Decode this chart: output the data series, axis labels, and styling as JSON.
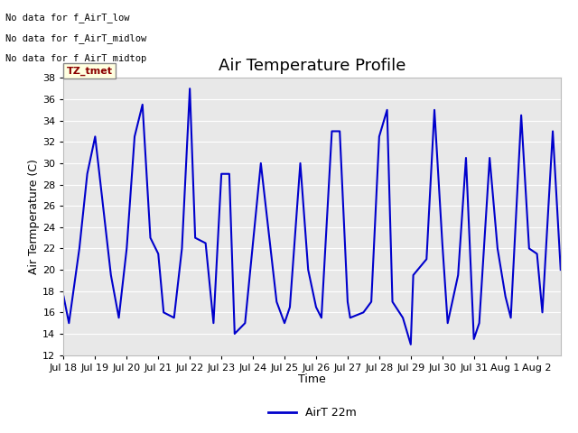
{
  "title": "Air Temperature Profile",
  "xlabel": "Time",
  "ylabel": "Air Termperature (C)",
  "ylim": [
    12,
    38
  ],
  "yticks": [
    12,
    14,
    16,
    18,
    20,
    22,
    24,
    26,
    28,
    30,
    32,
    34,
    36,
    38
  ],
  "line_color": "#0000cc",
  "line_width": 1.5,
  "background_color": "#e8e8e8",
  "no_data_texts": [
    "No data for f_AirT_low",
    "No data for f_AirT_midlow",
    "No data for f_AirT_midtop"
  ],
  "tz_label": "TZ_tmet",
  "legend_label": "AirT 22m",
  "x_tick_labels": [
    "Jul 18",
    "Jul 19",
    "Jul 20",
    "Jul 21",
    "Jul 22",
    "Jul 23",
    "Jul 24",
    "Jul 25",
    "Jul 26",
    "Jul 27",
    "Jul 28",
    "Jul 29",
    "Jul 30",
    "Jul 31",
    "Aug 1",
    "Aug 2"
  ],
  "time_data": [
    0.0,
    0.17,
    0.5,
    0.75,
    1.0,
    1.25,
    1.5,
    1.75,
    2.0,
    2.25,
    2.5,
    2.75,
    3.0,
    3.17,
    3.5,
    3.75,
    4.0,
    4.17,
    4.5,
    4.75,
    5.0,
    5.25,
    5.42,
    5.75,
    6.0,
    6.25,
    6.5,
    6.75,
    7.0,
    7.17,
    7.5,
    7.75,
    8.0,
    8.17,
    8.5,
    8.75,
    9.0,
    9.08,
    9.5,
    9.75,
    10.0,
    10.25,
    10.42,
    10.75,
    11.0,
    11.08,
    11.5,
    11.75,
    12.0,
    12.17,
    12.5,
    12.75,
    13.0,
    13.17,
    13.5,
    13.75,
    14.0,
    14.17,
    14.5,
    14.75,
    15.0,
    15.17,
    15.5,
    15.75
  ],
  "temp_data": [
    17.5,
    15.0,
    22.0,
    29.0,
    32.5,
    26.0,
    19.5,
    15.5,
    22.0,
    32.5,
    35.5,
    23.0,
    21.5,
    16.0,
    15.5,
    22.0,
    37.0,
    23.0,
    22.5,
    15.0,
    29.0,
    29.0,
    14.0,
    15.0,
    22.5,
    30.0,
    23.5,
    17.0,
    15.0,
    16.5,
    30.0,
    20.0,
    16.5,
    15.5,
    33.0,
    33.0,
    17.0,
    15.5,
    16.0,
    17.0,
    32.5,
    35.0,
    17.0,
    15.5,
    13.0,
    19.5,
    21.0,
    35.0,
    22.5,
    15.0,
    19.5,
    30.5,
    13.5,
    15.0,
    30.5,
    22.0,
    17.5,
    15.5,
    34.5,
    22.0,
    21.5,
    16.0,
    33.0,
    20.0
  ]
}
